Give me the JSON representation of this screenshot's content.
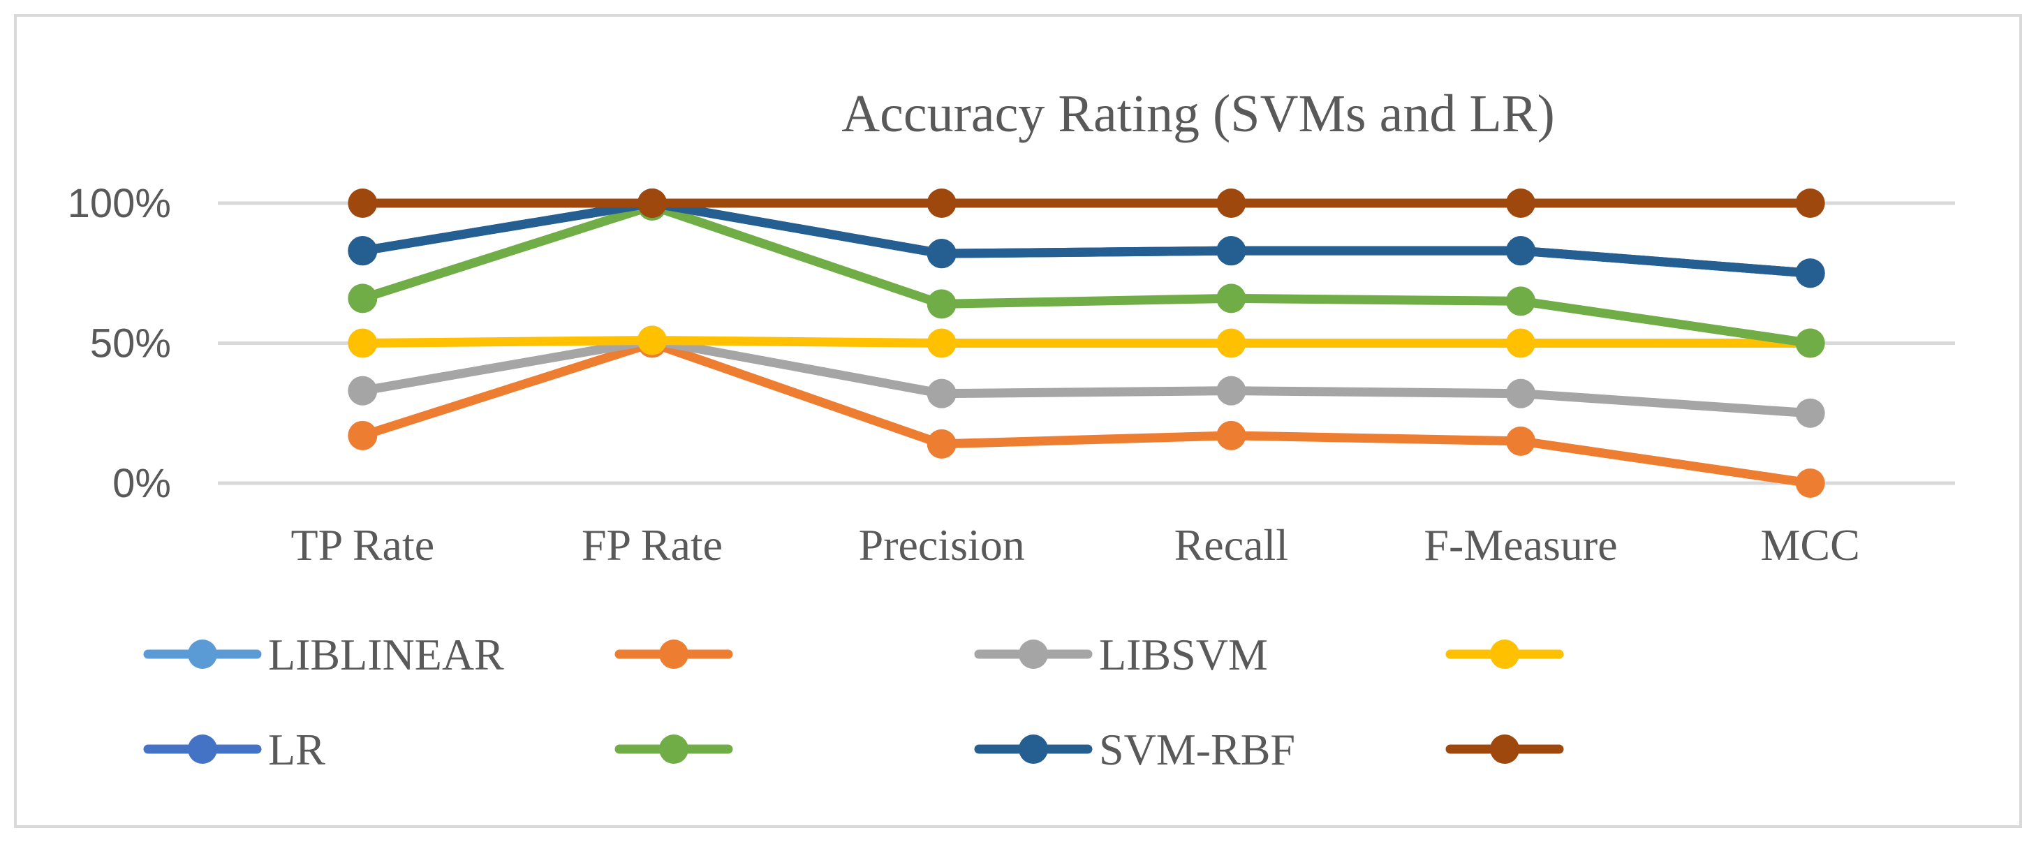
{
  "chart_data": {
    "type": "line",
    "title": "Accuracy Rating (SVMs  and LR)",
    "xlabel": "",
    "ylabel": "",
    "categories": [
      "TP Rate",
      "FP Rate",
      "Precision",
      "Recall",
      "F-Measure",
      "MCC"
    ],
    "ylim": [
      0,
      100
    ],
    "yticks": [
      {
        "value": 0,
        "label": "0%"
      },
      {
        "value": 50,
        "label": "50%"
      },
      {
        "value": 100,
        "label": "100%"
      }
    ],
    "grid": true,
    "legend_position": "bottom",
    "series": [
      {
        "name": "LIBLINEAR",
        "color": "#5B9BD5",
        "values": [
          83,
          100,
          82,
          83,
          83,
          75
        ]
      },
      {
        "name": "",
        "color": "#ED7D31",
        "values": [
          17,
          50,
          14,
          17,
          15,
          0
        ]
      },
      {
        "name": "LIBSVM",
        "color": "#A5A5A5",
        "values": [
          33,
          51,
          32,
          33,
          32,
          25
        ]
      },
      {
        "name": "",
        "color": "#FFC000",
        "values": [
          50,
          51,
          50,
          50,
          50,
          50
        ]
      },
      {
        "name": "LR",
        "color": "#4472C4",
        "values": [
          83,
          100,
          82,
          83,
          83,
          75
        ]
      },
      {
        "name": "",
        "color": "#70AD47",
        "values": [
          66,
          99,
          64,
          66,
          65,
          50
        ]
      },
      {
        "name": "SVM-RBF",
        "color": "#255E91",
        "values": [
          83,
          100,
          82,
          83,
          83,
          75
        ]
      },
      {
        "name": "",
        "color": "#9E480E",
        "values": [
          100,
          100,
          100,
          100,
          100,
          100
        ]
      }
    ]
  },
  "style": {
    "grid_color": "#D9D9D9",
    "border_color": "#D9D9D9"
  }
}
